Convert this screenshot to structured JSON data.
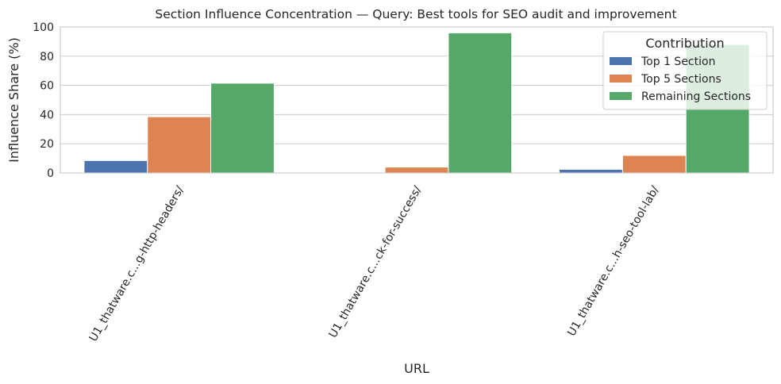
{
  "chart_data": {
    "type": "bar",
    "title": "Section Influence Concentration — Query: Best tools for SEO audit and improvement",
    "xlabel": "URL",
    "ylabel": "Influence Share (%)",
    "ylim": [
      0,
      100
    ],
    "yticks": [
      0,
      20,
      40,
      60,
      80,
      100
    ],
    "grid": true,
    "categories": [
      "U1_thatware.c...g-http-headers/",
      "U1_thatware.c...ck-for-success/",
      "U1_thatware.c...h-seo-tool-lab/"
    ],
    "series": [
      {
        "name": "Top 1 Section",
        "color": "#4c72b0",
        "values": [
          8.5,
          0.5,
          2.5
        ]
      },
      {
        "name": "Top 5 Sections",
        "color": "#dd8452",
        "values": [
          38.5,
          4.0,
          12.0
        ]
      },
      {
        "name": "Remaining Sections",
        "color": "#55a868",
        "values": [
          61.5,
          96.0,
          88.0
        ]
      }
    ],
    "legend": {
      "title": "Contribution",
      "placement": "top-right"
    }
  }
}
